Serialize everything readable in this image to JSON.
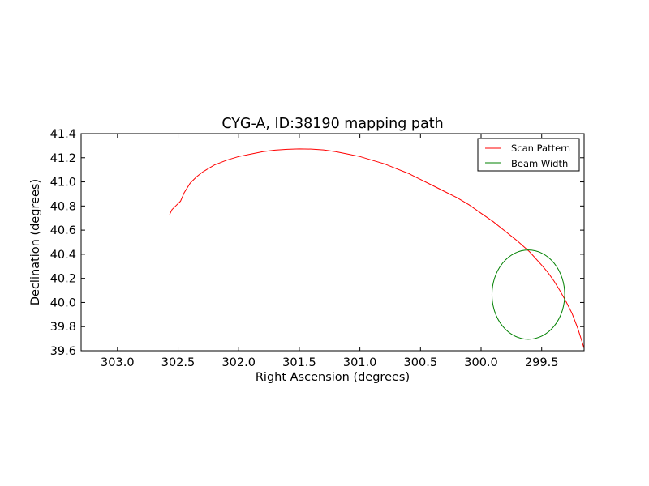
{
  "chart_data": {
    "type": "line",
    "title": "CYG-A, ID:38190 mapping path",
    "xlabel": "Right Ascension (degrees)",
    "ylabel": "Declination (degrees)",
    "xlim": [
      303.3,
      299.15
    ],
    "ylim": [
      39.6,
      41.4
    ],
    "x_inverted": true,
    "xticks": [
      303.0,
      302.5,
      302.0,
      301.5,
      301.0,
      300.5,
      300.0,
      299.5
    ],
    "xtick_labels": [
      "303.0",
      "302.5",
      "302.0",
      "301.5",
      "301.0",
      "300.5",
      "300.0",
      "299.5"
    ],
    "yticks": [
      39.6,
      39.8,
      40.0,
      40.2,
      40.4,
      40.6,
      40.8,
      41.0,
      41.2,
      41.4
    ],
    "ytick_labels": [
      "39.6",
      "39.8",
      "40.0",
      "40.2",
      "40.4",
      "40.6",
      "40.8",
      "41.0",
      "41.2",
      "41.4"
    ],
    "grid": false,
    "legend_position": "top-right",
    "series": [
      {
        "name": "Scan Pattern",
        "color": "#ff0000",
        "x": [
          302.57,
          302.55,
          302.52,
          302.48,
          302.45,
          302.4,
          302.35,
          302.3,
          302.2,
          302.1,
          302.0,
          301.9,
          301.8,
          301.7,
          301.6,
          301.5,
          301.4,
          301.3,
          301.2,
          301.1,
          301.0,
          300.9,
          300.8,
          300.7,
          300.6,
          300.5,
          300.4,
          300.3,
          300.2,
          300.1,
          300.0,
          299.9,
          299.8,
          299.7,
          299.6,
          299.5,
          299.45,
          299.4,
          299.35,
          299.3,
          299.25,
          299.2,
          299.15
        ],
        "y": [
          40.73,
          40.77,
          40.8,
          40.84,
          40.91,
          40.99,
          41.04,
          41.08,
          41.14,
          41.18,
          41.21,
          41.23,
          41.25,
          41.263,
          41.27,
          41.273,
          41.272,
          41.265,
          41.25,
          41.23,
          41.21,
          41.18,
          41.15,
          41.11,
          41.07,
          41.02,
          40.97,
          40.92,
          40.87,
          40.81,
          40.74,
          40.67,
          40.59,
          40.51,
          40.42,
          40.31,
          40.25,
          40.18,
          40.1,
          40.01,
          39.91,
          39.78,
          39.62
        ]
      },
      {
        "name": "Beam Width",
        "color": "#008000",
        "shape": "circle",
        "center": [
          299.61,
          40.065
        ],
        "radius_ra": 0.3,
        "radius_dec": 0.37
      }
    ]
  }
}
